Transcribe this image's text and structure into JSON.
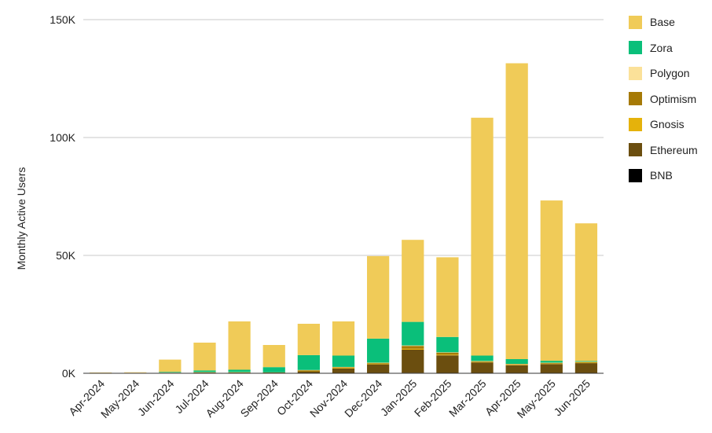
{
  "chart_data": {
    "type": "bar",
    "stacked": true,
    "title": "",
    "xlabel": "",
    "ylabel": "Monthly Active Users",
    "ylim": [
      0,
      150000
    ],
    "yticks": [
      0,
      50000,
      100000,
      150000
    ],
    "ytick_labels": [
      "0K",
      "50K",
      "100K",
      "150K"
    ],
    "grid": true,
    "legend_position": "right",
    "categories": [
      "Apr-2024",
      "May-2024",
      "Jun-2024",
      "Jul-2024",
      "Aug-2024",
      "Sep-2024",
      "Oct-2024",
      "Nov-2024",
      "Dec-2024",
      "Jan-2025",
      "Feb-2025",
      "Mar-2025",
      "Apr-2025",
      "May-2025",
      "Jun-2025"
    ],
    "series": [
      {
        "name": "BNB",
        "color": "#000000",
        "values": [
          0,
          0,
          0,
          0,
          0,
          0,
          0,
          0,
          100,
          200,
          100,
          100,
          100,
          100,
          100
        ]
      },
      {
        "name": "Ethereum",
        "color": "#6b4e0f",
        "values": [
          200,
          0,
          100,
          300,
          300,
          300,
          900,
          2000,
          3700,
          9800,
          7500,
          4500,
          3300,
          3800,
          4200
        ]
      },
      {
        "name": "Gnosis",
        "color": "#e5b20b",
        "values": [
          0,
          0,
          0,
          0,
          0,
          0,
          100,
          300,
          300,
          400,
          300,
          200,
          200,
          200,
          200
        ]
      },
      {
        "name": "Optimism",
        "color": "#a67a06",
        "values": [
          0,
          0,
          0,
          100,
          100,
          100,
          300,
          300,
          300,
          1200,
          900,
          300,
          300,
          300,
          300
        ]
      },
      {
        "name": "Polygon",
        "color": "#fbe199",
        "values": [
          0,
          500,
          200,
          100,
          100,
          0,
          100,
          100,
          100,
          200,
          100,
          100,
          100,
          100,
          100
        ]
      },
      {
        "name": "Zora",
        "color": "#0abf7a",
        "values": [
          0,
          0,
          300,
          700,
          1000,
          2200,
          6300,
          4800,
          10200,
          10000,
          6500,
          2300,
          2000,
          800,
          300
        ]
      },
      {
        "name": "Base",
        "color": "#f0cb58",
        "values": [
          100,
          0,
          5200,
          11800,
          20500,
          9400,
          13300,
          14500,
          35000,
          34800,
          33800,
          100900,
          125500,
          68000,
          58400
        ]
      }
    ],
    "legend_order": [
      "Base",
      "Zora",
      "Polygon",
      "Optimism",
      "Gnosis",
      "Ethereum",
      "BNB"
    ]
  }
}
